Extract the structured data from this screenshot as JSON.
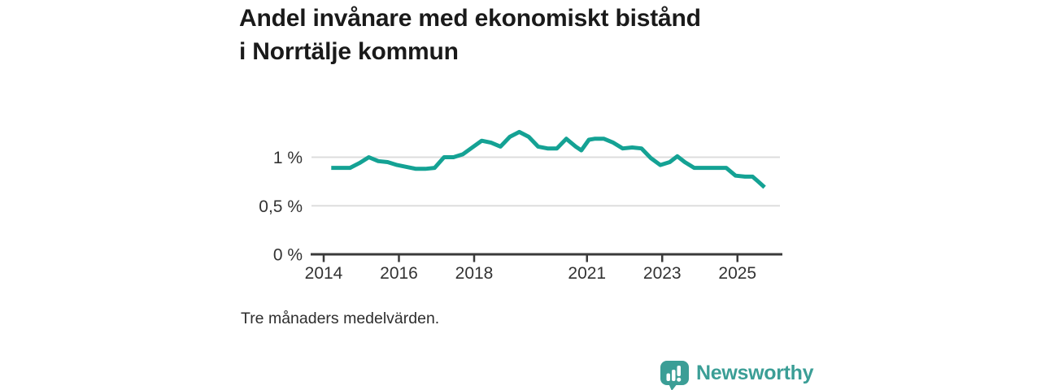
{
  "header": {
    "title": "Andel invånare med ekonomiskt bistånd i Norrtälje kommun"
  },
  "footnote": "Tre månaders medelvärden.",
  "branding": {
    "name": "Newsworthy",
    "logo_icon": "bar-chart-speech-bubble-icon",
    "color": "#3b9e96"
  },
  "chart_data": {
    "type": "line",
    "title": "Andel invånare med ekonomiskt bistånd i Norrtälje kommun",
    "note": "Tre månaders medelvärden.",
    "unit": "percent",
    "legend": "none",
    "grid": "horizontal-only",
    "xlim": [
      2013.7,
      2026.3
    ],
    "ylim": [
      0,
      1.4
    ],
    "xticks": [
      2014,
      2016,
      2018,
      2021,
      2023,
      2025
    ],
    "xtick_labels": [
      "2014",
      "2016",
      "2018",
      "2021",
      "2023",
      "2025"
    ],
    "yticks": [
      {
        "value": 0,
        "label": "0 %"
      },
      {
        "value": 0.5,
        "label": "0,5 %"
      },
      {
        "value": 1,
        "label": "1 %"
      }
    ],
    "line_color": "#14a294",
    "grid_color": "#dddddd",
    "axis_color": "#3a3a3a",
    "tick_text_color": "#333333",
    "series": [
      {
        "name": "Andel invånare med ekonomiskt bistånd",
        "x": [
          2014.2,
          2014.45,
          2014.7,
          2014.95,
          2015.2,
          2015.45,
          2015.7,
          2015.95,
          2016.2,
          2016.45,
          2016.7,
          2016.95,
          2017.2,
          2017.45,
          2017.7,
          2017.95,
          2018.2,
          2018.45,
          2018.7,
          2018.95,
          2019.2,
          2019.45,
          2019.7,
          2019.95,
          2020.2,
          2020.45,
          2020.7,
          2020.85,
          2021.05,
          2021.2,
          2021.45,
          2021.7,
          2021.95,
          2022.2,
          2022.45,
          2022.7,
          2022.95,
          2023.2,
          2023.4,
          2023.6,
          2023.85,
          2024.1,
          2024.45,
          2024.7,
          2024.95,
          2025.2,
          2025.4,
          2025.55,
          2025.72
        ],
        "values": [
          0.89,
          0.89,
          0.89,
          0.94,
          1.0,
          0.96,
          0.95,
          0.92,
          0.9,
          0.88,
          0.88,
          0.89,
          1.0,
          1.0,
          1.03,
          1.1,
          1.17,
          1.15,
          1.11,
          1.21,
          1.26,
          1.21,
          1.11,
          1.09,
          1.09,
          1.19,
          1.11,
          1.07,
          1.18,
          1.19,
          1.19,
          1.15,
          1.09,
          1.1,
          1.09,
          0.99,
          0.92,
          0.95,
          1.01,
          0.95,
          0.89,
          0.89,
          0.89,
          0.89,
          0.81,
          0.8,
          0.8,
          0.75,
          0.69
        ]
      }
    ]
  }
}
